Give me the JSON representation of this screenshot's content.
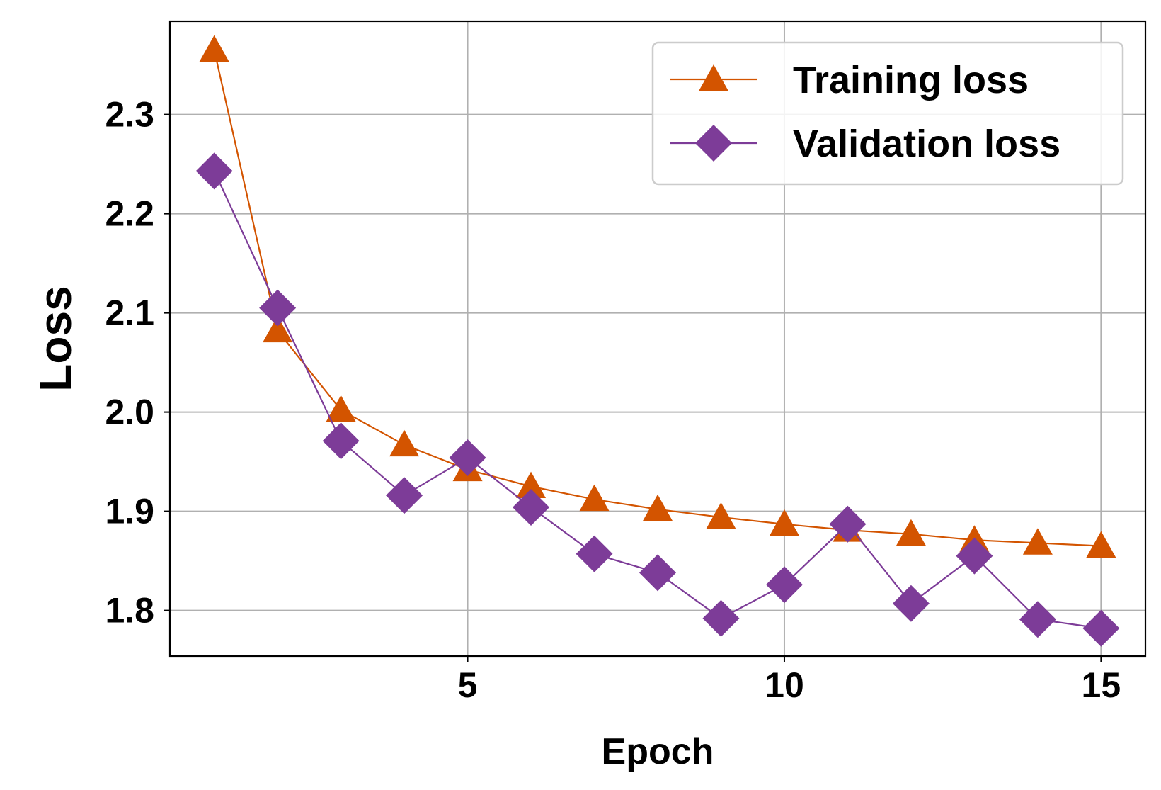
{
  "chart_data": {
    "type": "line",
    "xlabel": "Epoch",
    "ylabel": "Loss",
    "x": [
      1,
      2,
      3,
      4,
      5,
      6,
      7,
      8,
      9,
      10,
      11,
      12,
      13,
      14,
      15
    ],
    "xlim": [
      0.3,
      15.7
    ],
    "ylim": [
      1.754,
      2.394
    ],
    "xticks": [
      5,
      10,
      15
    ],
    "yticks": [
      1.8,
      1.9,
      2.0,
      2.1,
      2.2,
      2.3
    ],
    "xtick_labels": [
      "5",
      "10",
      "15"
    ],
    "ytick_labels": [
      "1.8",
      "1.9",
      "2.0",
      "2.1",
      "2.2",
      "2.3"
    ],
    "grid": true,
    "legend_position": "top-right",
    "series": [
      {
        "name": "Training loss",
        "marker": "triangle",
        "color": "#d35400",
        "values": [
          2.365,
          2.082,
          2.002,
          1.967,
          1.942,
          1.925,
          1.912,
          1.902,
          1.894,
          1.887,
          1.881,
          1.877,
          1.871,
          1.868,
          1.865
        ]
      },
      {
        "name": "Validation loss",
        "marker": "diamond",
        "color": "#7d3c98",
        "values": [
          2.243,
          2.105,
          1.971,
          1.916,
          1.954,
          1.904,
          1.857,
          1.838,
          1.792,
          1.826,
          1.887,
          1.807,
          1.855,
          1.791,
          1.782
        ]
      }
    ]
  }
}
